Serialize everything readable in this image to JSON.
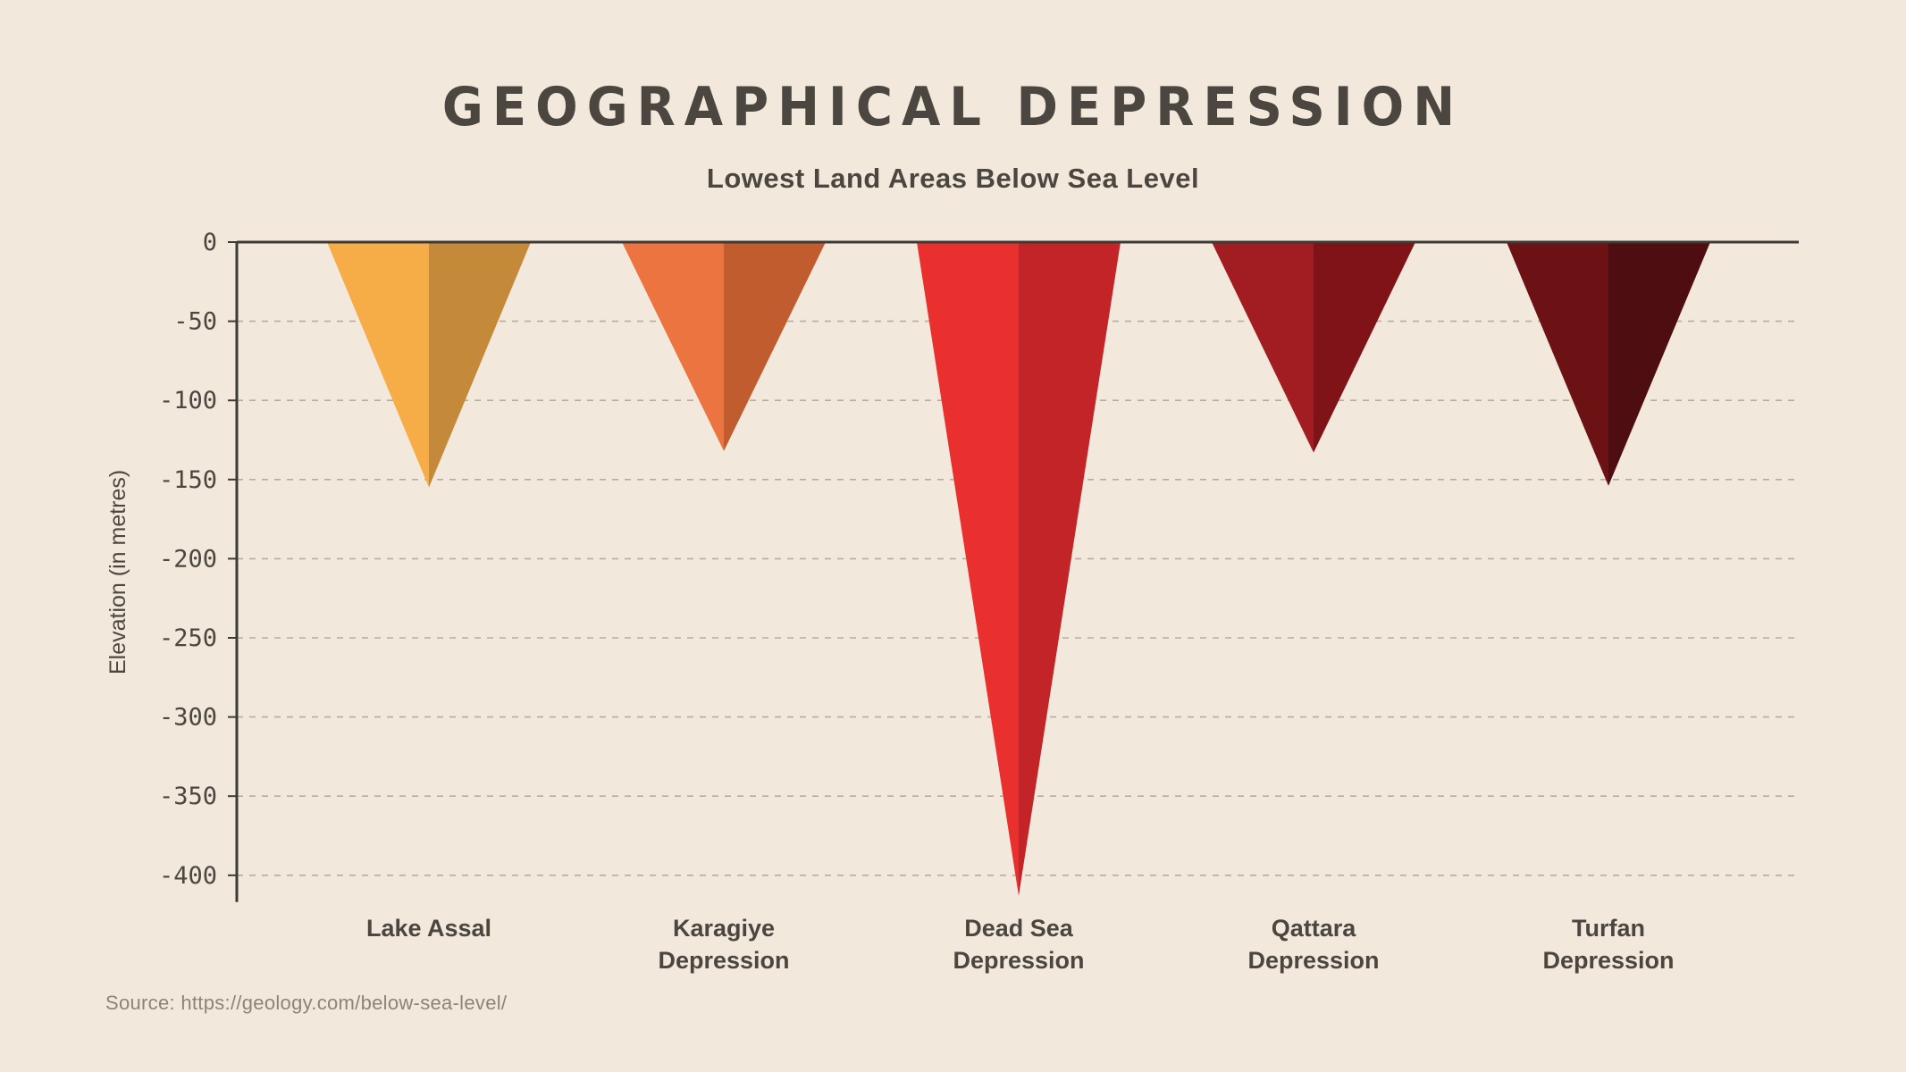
{
  "chart_data": {
    "type": "bar",
    "variant": "inverted-triangle",
    "title": "Geographical Depression",
    "subtitle": "Lowest Land Areas Below Sea Level",
    "ylabel": "Elevation (in metres)",
    "xlabel": "",
    "ylim": [
      -400,
      0
    ],
    "yticks": [
      0,
      -50,
      -100,
      -150,
      -200,
      -250,
      -300,
      -350,
      -400
    ],
    "grid": "dashed-horizontal",
    "legend": "none",
    "categories": [
      "Lake Assal",
      "Karagiye Depression",
      "Dead Sea Depression",
      "Qattara Depression",
      "Turfan Depression"
    ],
    "category_label_lines": [
      [
        "Lake Assal"
      ],
      [
        "Karagiye",
        "Depression"
      ],
      [
        "Dead Sea",
        "Depression"
      ],
      [
        "Qattara",
        "Depression"
      ],
      [
        "Turfan",
        "Depression"
      ]
    ],
    "values": [
      -155,
      -132,
      -413,
      -133,
      -154
    ],
    "colors": [
      {
        "left": "#F6AC47",
        "right": "#C48A3A"
      },
      {
        "left": "#EC7440",
        "right": "#C05C2E"
      },
      {
        "left": "#E9302F",
        "right": "#C32427"
      },
      {
        "left": "#A21D22",
        "right": "#7F1317"
      },
      {
        "left": "#6C1214",
        "right": "#4E0D10"
      }
    ],
    "axis_color": "#3c3a36",
    "grid_color": "#b6ad9f",
    "label_color": "#4b463f",
    "source": "Source: https://geology.com/below-sea-level/"
  }
}
